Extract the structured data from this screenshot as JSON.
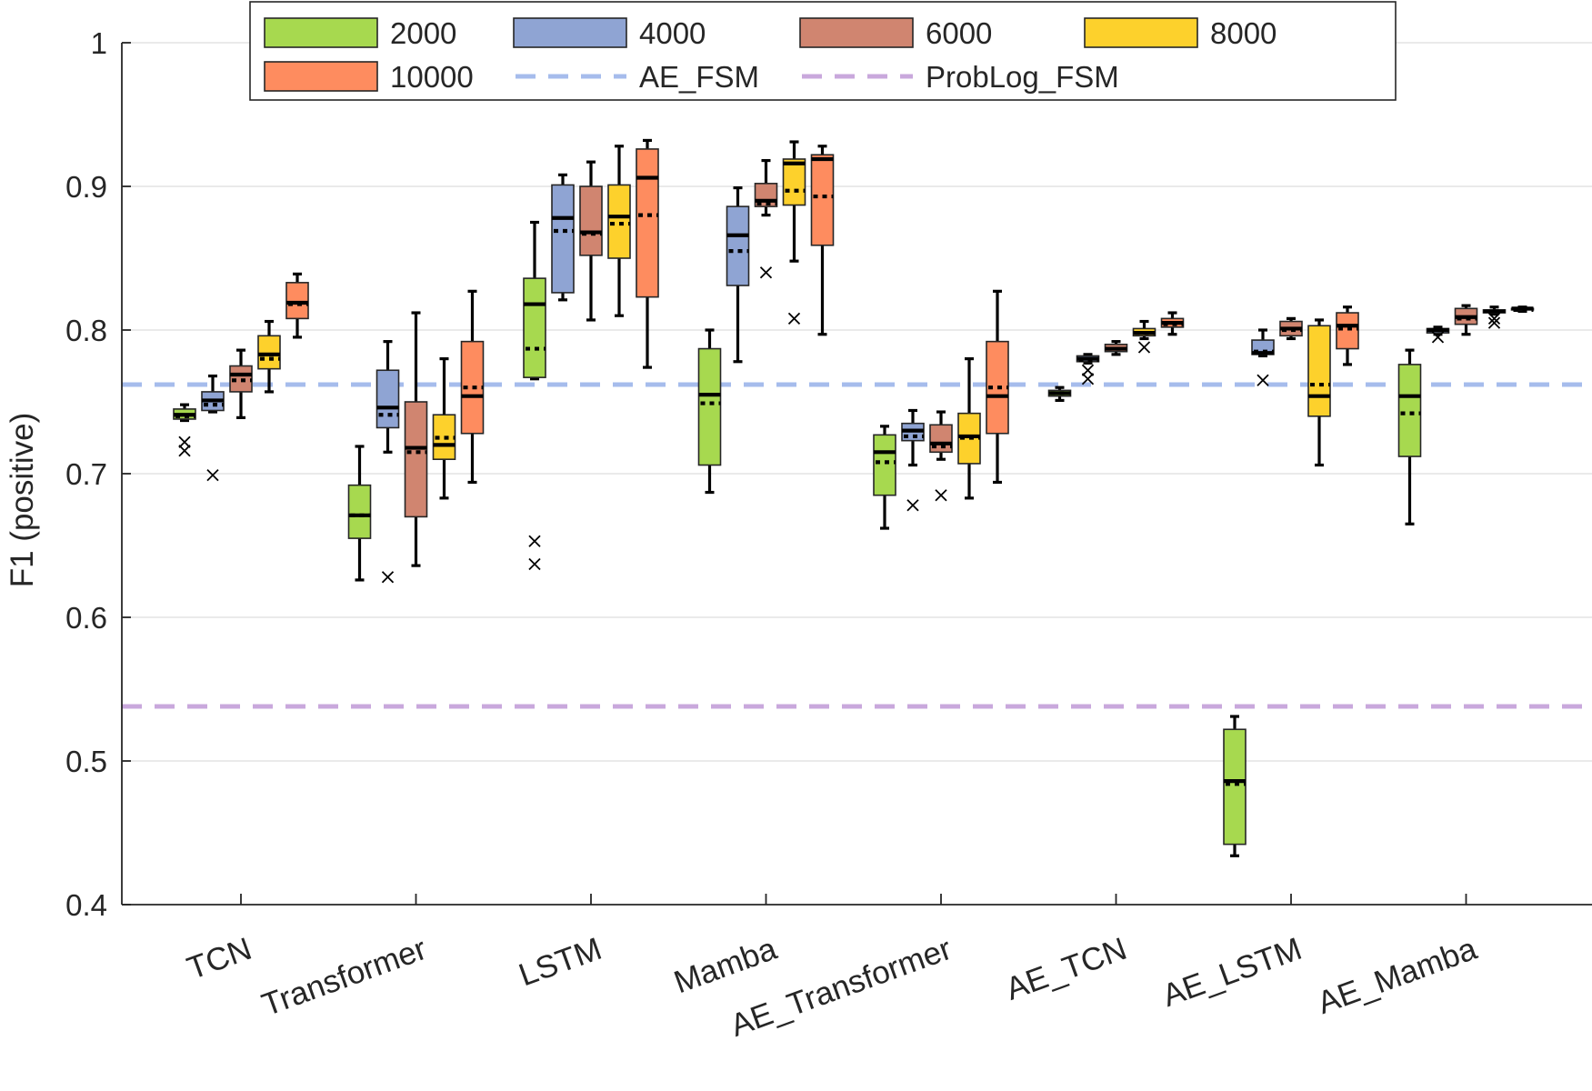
{
  "chart_data": {
    "type": "boxplot",
    "title": "",
    "xlabel": "",
    "ylabel": "F1 (positive)",
    "ylim": [
      0.4,
      1.0
    ],
    "yticks": [
      0.4,
      0.5,
      0.6,
      0.7,
      0.8,
      0.9,
      1
    ],
    "ytick_labels": [
      "0.4",
      "0.5",
      "0.6",
      "0.7",
      "0.8",
      "0.9",
      "1"
    ],
    "grid": true,
    "legend_position": "top",
    "categories": [
      "TCN",
      "Transformer",
      "LSTM",
      "Mamba",
      "AE_Transformer",
      "AE_TCN",
      "AE_LSTM",
      "AE_Mamba"
    ],
    "series": [
      {
        "name": "2000",
        "color": "#a7d94f",
        "boxes": [
          {
            "whislo": 0.737,
            "q1": 0.738,
            "med": 0.741,
            "mean": 0.74,
            "q3": 0.745,
            "whishi": 0.748,
            "outliers": [
              0.722,
              0.716
            ]
          },
          {
            "whislo": 0.626,
            "q1": 0.655,
            "med": 0.671,
            "mean": 0.671,
            "q3": 0.692,
            "whishi": 0.719,
            "outliers": []
          },
          {
            "whislo": 0.766,
            "q1": 0.767,
            "med": 0.818,
            "mean": 0.787,
            "q3": 0.836,
            "whishi": 0.875,
            "outliers": [
              0.653,
              0.637
            ]
          },
          {
            "whislo": 0.687,
            "q1": 0.706,
            "med": 0.755,
            "mean": 0.749,
            "q3": 0.787,
            "whishi": 0.8,
            "outliers": []
          },
          {
            "whislo": 0.662,
            "q1": 0.685,
            "med": 0.715,
            "mean": 0.708,
            "q3": 0.727,
            "whishi": 0.733,
            "outliers": []
          },
          {
            "whislo": 0.751,
            "q1": 0.754,
            "med": 0.756,
            "mean": 0.756,
            "q3": 0.758,
            "whishi": 0.76,
            "outliers": []
          },
          {
            "whislo": 0.434,
            "q1": 0.442,
            "med": 0.486,
            "mean": 0.484,
            "q3": 0.522,
            "whishi": 0.531,
            "outliers": []
          },
          {
            "whislo": 0.665,
            "q1": 0.712,
            "med": 0.754,
            "mean": 0.742,
            "q3": 0.776,
            "whishi": 0.786,
            "outliers": []
          }
        ]
      },
      {
        "name": "4000",
        "color": "#8fa4d3",
        "boxes": [
          {
            "whislo": 0.743,
            "q1": 0.744,
            "med": 0.751,
            "mean": 0.748,
            "q3": 0.757,
            "whishi": 0.768,
            "outliers": [
              0.699
            ]
          },
          {
            "whislo": 0.715,
            "q1": 0.732,
            "med": 0.746,
            "mean": 0.741,
            "q3": 0.772,
            "whishi": 0.792,
            "outliers": [
              0.628
            ]
          },
          {
            "whislo": 0.821,
            "q1": 0.826,
            "med": 0.878,
            "mean": 0.869,
            "q3": 0.901,
            "whishi": 0.908,
            "outliers": []
          },
          {
            "whislo": 0.778,
            "q1": 0.831,
            "med": 0.866,
            "mean": 0.855,
            "q3": 0.886,
            "whishi": 0.899,
            "outliers": []
          },
          {
            "whislo": 0.706,
            "q1": 0.723,
            "med": 0.73,
            "mean": 0.726,
            "q3": 0.735,
            "whishi": 0.744,
            "outliers": [
              0.678
            ]
          },
          {
            "whislo": 0.777,
            "q1": 0.778,
            "med": 0.78,
            "mean": 0.779,
            "q3": 0.782,
            "whishi": 0.783,
            "outliers": [
              0.772,
              0.766
            ]
          },
          {
            "whislo": 0.782,
            "q1": 0.783,
            "med": 0.784,
            "mean": 0.785,
            "q3": 0.793,
            "whishi": 0.8,
            "outliers": [
              0.765
            ]
          },
          {
            "whislo": 0.797,
            "q1": 0.798,
            "med": 0.8,
            "mean": 0.8,
            "q3": 0.801,
            "whishi": 0.802,
            "outliers": [
              0.795
            ]
          }
        ]
      },
      {
        "name": "6000",
        "color": "#d08570",
        "boxes": [
          {
            "whislo": 0.739,
            "q1": 0.757,
            "med": 0.769,
            "mean": 0.765,
            "q3": 0.775,
            "whishi": 0.786,
            "outliers": []
          },
          {
            "whislo": 0.636,
            "q1": 0.67,
            "med": 0.718,
            "mean": 0.715,
            "q3": 0.75,
            "whishi": 0.812,
            "outliers": []
          },
          {
            "whislo": 0.807,
            "q1": 0.852,
            "med": 0.868,
            "mean": 0.867,
            "q3": 0.9,
            "whishi": 0.917,
            "outliers": []
          },
          {
            "whislo": 0.88,
            "q1": 0.886,
            "med": 0.89,
            "mean": 0.888,
            "q3": 0.902,
            "whishi": 0.918,
            "outliers": [
              0.84
            ]
          },
          {
            "whislo": 0.71,
            "q1": 0.715,
            "med": 0.721,
            "mean": 0.719,
            "q3": 0.734,
            "whishi": 0.743,
            "outliers": [
              0.685
            ]
          },
          {
            "whislo": 0.783,
            "q1": 0.785,
            "med": 0.787,
            "mean": 0.787,
            "q3": 0.79,
            "whishi": 0.792,
            "outliers": []
          },
          {
            "whislo": 0.794,
            "q1": 0.796,
            "med": 0.801,
            "mean": 0.8,
            "q3": 0.806,
            "whishi": 0.808,
            "outliers": []
          },
          {
            "whislo": 0.797,
            "q1": 0.804,
            "med": 0.809,
            "mean": 0.808,
            "q3": 0.815,
            "whishi": 0.817,
            "outliers": []
          }
        ]
      },
      {
        "name": "8000",
        "color": "#fdd12c",
        "boxes": [
          {
            "whislo": 0.757,
            "q1": 0.773,
            "med": 0.783,
            "mean": 0.78,
            "q3": 0.796,
            "whishi": 0.806,
            "outliers": []
          },
          {
            "whislo": 0.683,
            "q1": 0.71,
            "med": 0.72,
            "mean": 0.725,
            "q3": 0.741,
            "whishi": 0.78,
            "outliers": []
          },
          {
            "whislo": 0.81,
            "q1": 0.85,
            "med": 0.879,
            "mean": 0.874,
            "q3": 0.901,
            "whishi": 0.928,
            "outliers": []
          },
          {
            "whislo": 0.848,
            "q1": 0.887,
            "med": 0.916,
            "mean": 0.897,
            "q3": 0.919,
            "whishi": 0.931,
            "outliers": [
              0.808
            ]
          },
          {
            "whislo": 0.683,
            "q1": 0.707,
            "med": 0.726,
            "mean": 0.725,
            "q3": 0.742,
            "whishi": 0.78,
            "outliers": []
          },
          {
            "whislo": 0.794,
            "q1": 0.796,
            "med": 0.798,
            "mean": 0.798,
            "q3": 0.801,
            "whishi": 0.806,
            "outliers": [
              0.788
            ]
          },
          {
            "whislo": 0.706,
            "q1": 0.74,
            "med": 0.754,
            "mean": 0.762,
            "q3": 0.803,
            "whishi": 0.807,
            "outliers": []
          },
          {
            "whislo": 0.811,
            "q1": 0.812,
            "med": 0.813,
            "mean": 0.813,
            "q3": 0.814,
            "whishi": 0.816,
            "outliers": [
              0.808,
              0.805
            ]
          }
        ]
      },
      {
        "name": "10000",
        "color": "#fe8c5f",
        "boxes": [
          {
            "whislo": 0.795,
            "q1": 0.808,
            "med": 0.819,
            "mean": 0.818,
            "q3": 0.833,
            "whishi": 0.839,
            "outliers": []
          },
          {
            "whislo": 0.694,
            "q1": 0.728,
            "med": 0.754,
            "mean": 0.76,
            "q3": 0.792,
            "whishi": 0.827,
            "outliers": []
          },
          {
            "whislo": 0.774,
            "q1": 0.823,
            "med": 0.906,
            "mean": 0.88,
            "q3": 0.926,
            "whishi": 0.932,
            "outliers": []
          },
          {
            "whislo": 0.797,
            "q1": 0.859,
            "med": 0.919,
            "mean": 0.893,
            "q3": 0.922,
            "whishi": 0.928,
            "outliers": []
          },
          {
            "whislo": 0.694,
            "q1": 0.728,
            "med": 0.754,
            "mean": 0.76,
            "q3": 0.792,
            "whishi": 0.827,
            "outliers": []
          },
          {
            "whislo": 0.797,
            "q1": 0.802,
            "med": 0.805,
            "mean": 0.804,
            "q3": 0.808,
            "whishi": 0.812,
            "outliers": []
          },
          {
            "whislo": 0.776,
            "q1": 0.787,
            "med": 0.803,
            "mean": 0.801,
            "q3": 0.812,
            "whishi": 0.816,
            "outliers": []
          },
          {
            "whislo": 0.813,
            "q1": 0.814,
            "med": 0.815,
            "mean": 0.814,
            "q3": 0.815,
            "whishi": 0.816,
            "outliers": []
          }
        ]
      }
    ],
    "reference_lines": [
      {
        "name": "AE_FSM",
        "value": 0.762,
        "color": "#a6bcec"
      },
      {
        "name": "ProbLog_FSM",
        "value": 0.538,
        "color": "#c9a8dc"
      }
    ],
    "legend": {
      "entries": [
        "2000",
        "4000",
        "6000",
        "8000",
        "10000",
        "AE_FSM",
        "ProbLog_FSM"
      ]
    }
  }
}
